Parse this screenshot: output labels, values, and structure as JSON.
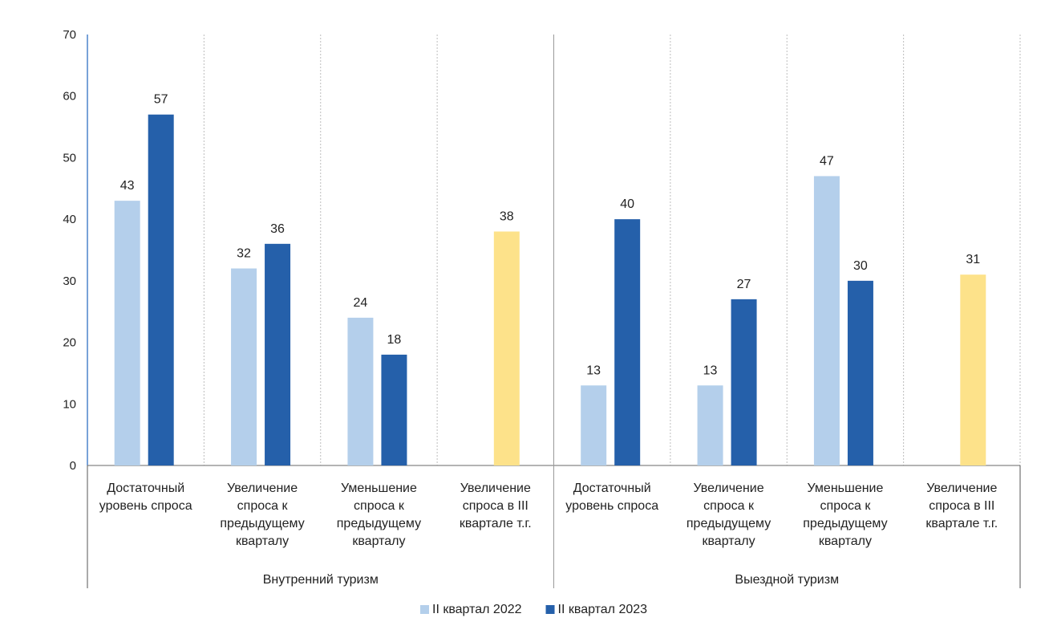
{
  "chart_data": {
    "type": "bar",
    "title": "",
    "xlabel": "",
    "ylabel": "",
    "ylim": [
      0,
      70
    ],
    "yticks": [
      0,
      10,
      20,
      30,
      40,
      50,
      60,
      70
    ],
    "grid": "vertical dashed category separators",
    "legend_position": "bottom",
    "groups": [
      {
        "label": "Внутренний туризм",
        "categories": [
          {
            "label_lines": [
              "Достаточный",
              "уровень спроса"
            ],
            "q2_2022": 43,
            "q2_2023": 57,
            "forecast": null
          },
          {
            "label_lines": [
              "Увеличение",
              "спроса к",
              "предыдущему",
              "кварталу"
            ],
            "q2_2022": 32,
            "q2_2023": 36,
            "forecast": null
          },
          {
            "label_lines": [
              "Уменьшение",
              "спроса к",
              "предыдущему",
              "кварталу"
            ],
            "q2_2022": 24,
            "q2_2023": 18,
            "forecast": null
          },
          {
            "label_lines": [
              "Увеличение",
              "спроса в III",
              "квартале т.г."
            ],
            "q2_2022": null,
            "q2_2023": null,
            "forecast": 38
          }
        ]
      },
      {
        "label": "Выездной туризм",
        "categories": [
          {
            "label_lines": [
              "Достаточный",
              "уровень спроса"
            ],
            "q2_2022": 13,
            "q2_2023": 40,
            "forecast": null
          },
          {
            "label_lines": [
              "Увеличение",
              "спроса к",
              "предыдущему",
              "кварталу"
            ],
            "q2_2022": 13,
            "q2_2023": 27,
            "forecast": null
          },
          {
            "label_lines": [
              "Уменьшение",
              "спроса к",
              "предыдущему",
              "кварталу"
            ],
            "q2_2022": 47,
            "q2_2023": 30,
            "forecast": null
          },
          {
            "label_lines": [
              "Увеличение",
              "спроса в III",
              "квартале т.г."
            ],
            "q2_2022": null,
            "q2_2023": null,
            "forecast": 31
          }
        ]
      }
    ],
    "series": [
      {
        "key": "q2_2022",
        "name": "II квартал 2022",
        "color": "#b4cfeb"
      },
      {
        "key": "q2_2023",
        "name": "II квартал 2023",
        "color": "#2560aa"
      },
      {
        "key": "forecast",
        "color": "#fde28a"
      }
    ]
  }
}
